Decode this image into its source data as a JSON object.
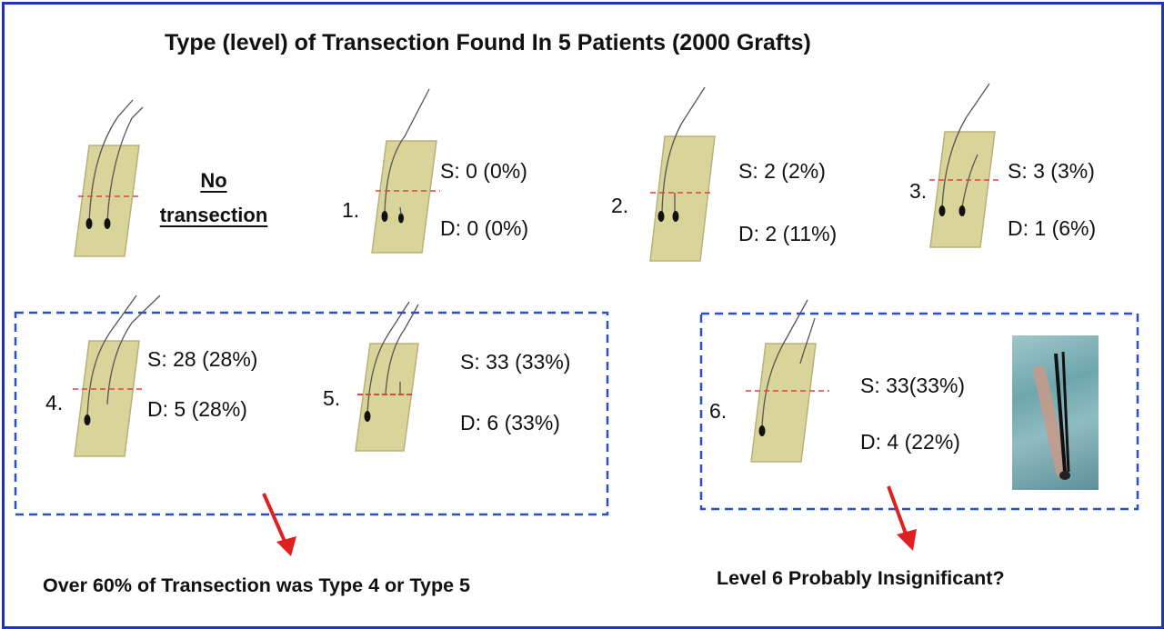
{
  "title": "Type (level) of Transection Found  In 5 Patients  (2000 Grafts)",
  "no_transection_label": [
    "No",
    "transection"
  ],
  "types": [
    {
      "num": "1.",
      "s": "S: 0 (0%)",
      "d": "D: 0 (0%)"
    },
    {
      "num": "2.",
      "s": "S: 2 (2%)",
      "d": "D: 2 (11%)"
    },
    {
      "num": "3.",
      "s": "S: 3 (3%)",
      "d": "D: 1 (6%)"
    },
    {
      "num": "4.",
      "s": "S: 28 (28%)",
      "d": "D: 5 (28%)"
    },
    {
      "num": "5.",
      "s": "S: 33 (33%)",
      "d": "D: 6 (33%)"
    },
    {
      "num": "6.",
      "s": "S: 33(33%)",
      "d": "D: 4 (22%)"
    }
  ],
  "captions": {
    "left": "Over  60% of Transection was Type 4 or Type 5",
    "right": "Level 6  Probably  Insignificant?"
  },
  "colors": {
    "frame": "#1f35b5",
    "dashed_box": "#2a4fc0",
    "graft_fill": "#d8d49a",
    "graft_edge": "#b8b27a",
    "transection_line": "#e0443a",
    "arrow": "#e02020"
  }
}
